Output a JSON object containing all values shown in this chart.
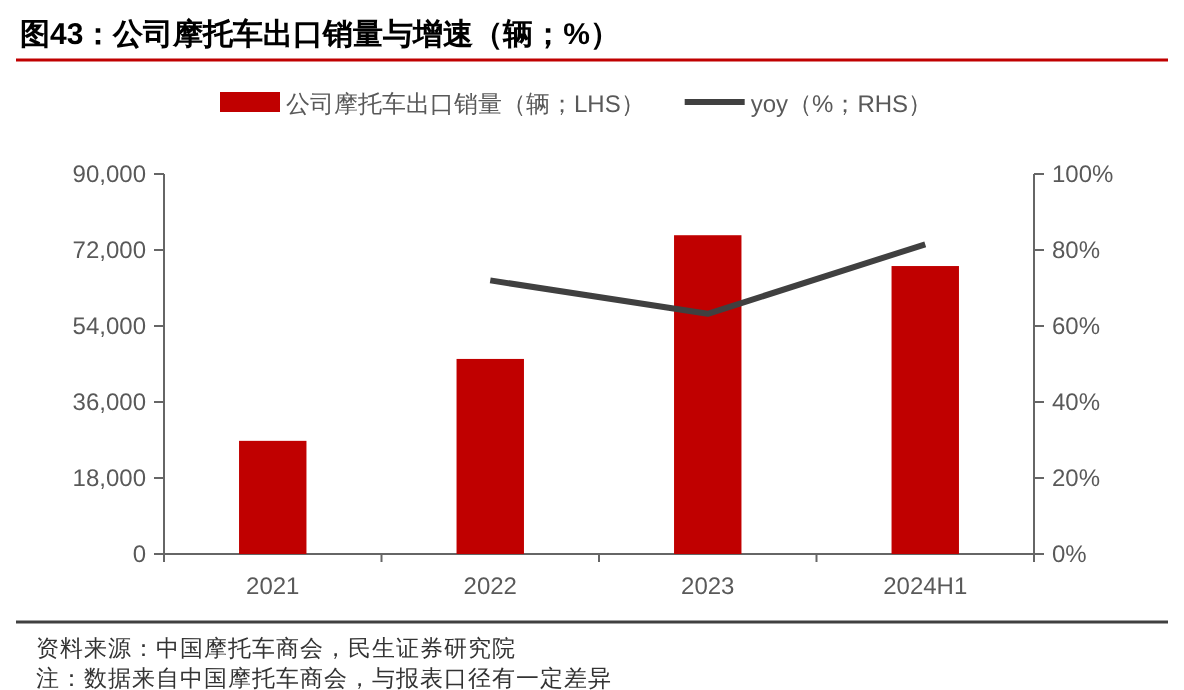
{
  "chart_data": {
    "type": "bar",
    "title": "图43：公司摩托车出口销量与增速（辆；%）",
    "categories": [
      "2021",
      "2022",
      "2023",
      "2024H1"
    ],
    "series": [
      {
        "name": "公司摩托车出口销量（辆；LHS）",
        "color": "#c00000",
        "values": [
          26800,
          46200,
          75500,
          68200
        ]
      },
      {
        "name": "yoy（%；RHS）",
        "type": "line",
        "axis": "y2",
        "color": "#404040",
        "values": [
          null,
          72,
          63.2,
          81.5
        ]
      }
    ],
    "ylim": [
      0,
      90000
    ],
    "yticks": [
      0,
      {
        "value": 18000,
        "label": "18,000"
      },
      {
        "value": 36000,
        "label": "36,000"
      },
      {
        "value": 54000,
        "label": "54,000"
      },
      {
        "value": 72000,
        "label": "72,000"
      },
      {
        "value": 90000,
        "label": "90,000"
      }
    ],
    "y2lim": [
      0,
      100
    ],
    "y2ticks": [
      {
        "value": 0,
        "label": "0%"
      },
      {
        "value": 20,
        "label": "20%"
      },
      {
        "value": 40,
        "label": "40%"
      },
      {
        "value": 60,
        "label": "60%"
      },
      {
        "value": 80,
        "label": "80%"
      },
      {
        "value": 100,
        "label": "100%"
      }
    ],
    "legend": "top",
    "grid": false,
    "marker": "none",
    "line_style": "solid",
    "annotations": [
      "资料来源：中国摩托车商会，民生证券研究院",
      "注：数据来自中国摩托车商会，与报表口径有一定差异"
    ]
  }
}
